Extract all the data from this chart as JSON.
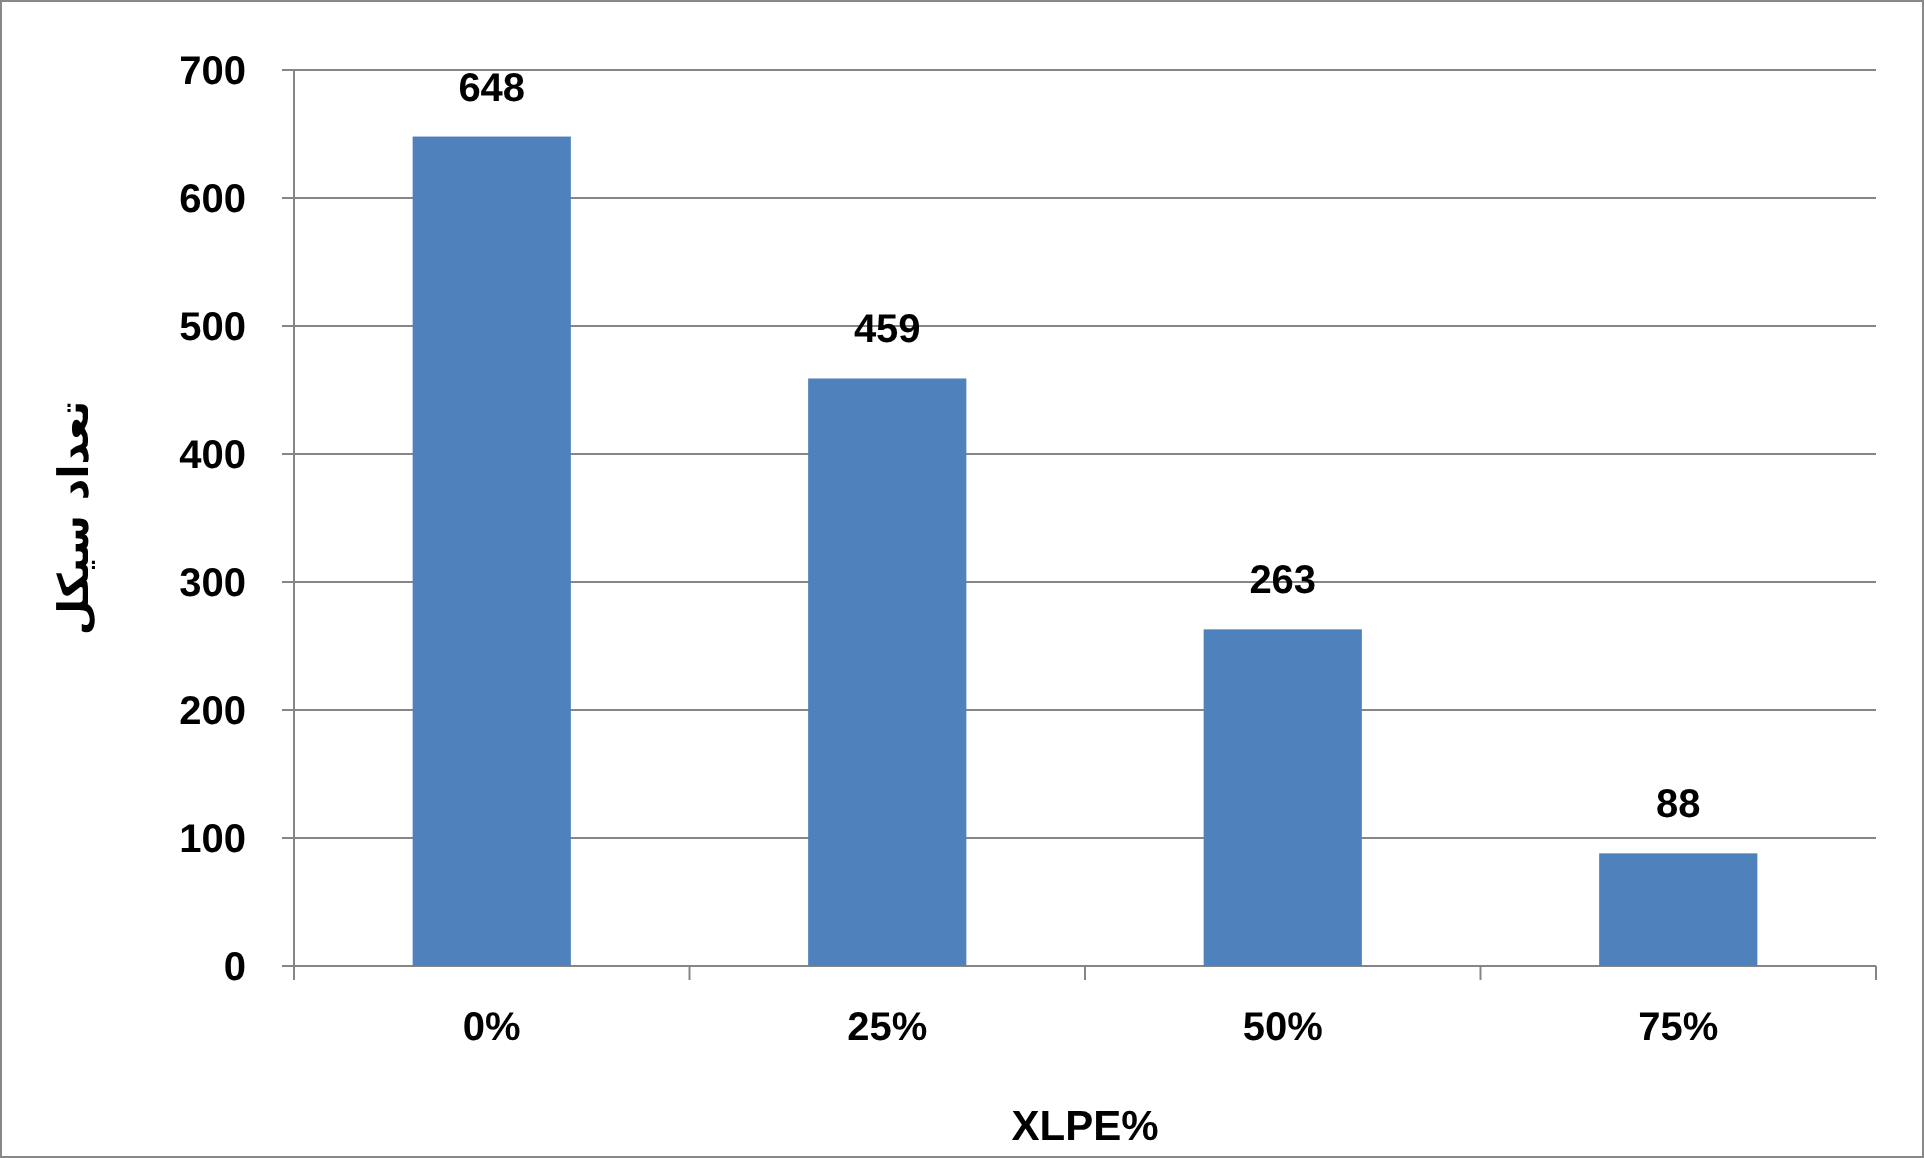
{
  "chart_data": {
    "type": "bar",
    "xlabel": "XLPE%",
    "ylabel": "تعداد سیکل",
    "categories": [
      "0%",
      "25%",
      "50%",
      "75%"
    ],
    "values": [
      648,
      459,
      263,
      88
    ],
    "color": "#4f81bd",
    "ylim": [
      0,
      700
    ],
    "yticks": [
      0,
      100,
      200,
      300,
      400,
      500,
      600,
      700
    ],
    "grid": "y",
    "data_labels": true
  }
}
